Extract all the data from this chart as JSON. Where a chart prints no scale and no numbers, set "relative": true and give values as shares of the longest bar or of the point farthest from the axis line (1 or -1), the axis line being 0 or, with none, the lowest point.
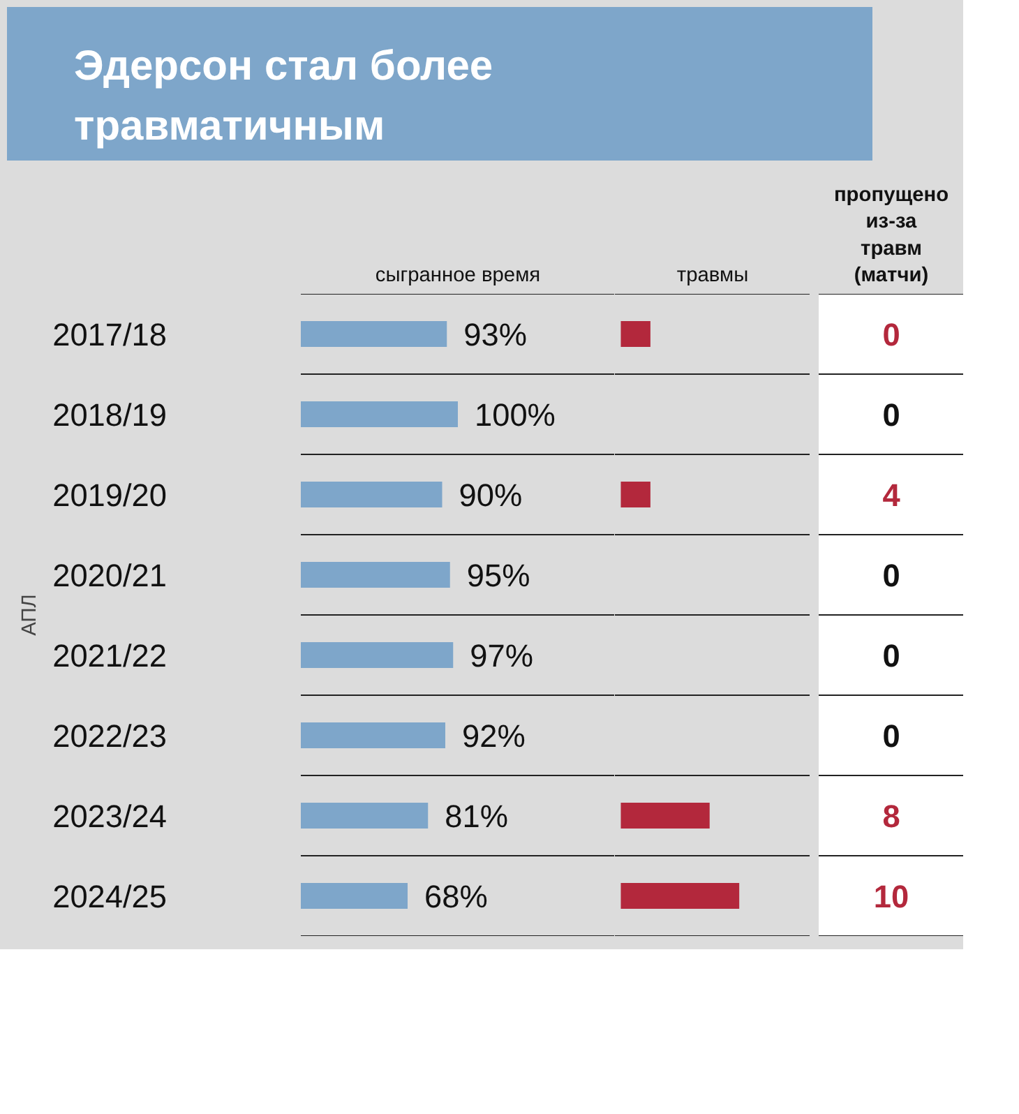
{
  "chart_data": [
    {
      "type": "bar",
      "orientation": "horizontal",
      "title": "Эдерсон стал более травматичным",
      "ylabel": "АПЛ",
      "xlabel": "сыгранное время",
      "categories": [
        "2017/18",
        "2018/19",
        "2019/20",
        "2020/21",
        "2021/22",
        "2022/23",
        "2023/24",
        "2024/25"
      ],
      "values": [
        93,
        100,
        90,
        95,
        97,
        92,
        81,
        68
      ],
      "value_labels": [
        "93%",
        "100%",
        "90%",
        "95%",
        "97%",
        "92%",
        "81%",
        "68%"
      ],
      "color": "#7ea6ca",
      "tick_labels": "y"
    },
    {
      "type": "bar",
      "orientation": "horizontal",
      "relative": true,
      "xlabel": "травмы",
      "categories": [
        "2017/18",
        "2018/19",
        "2019/20",
        "2020/21",
        "2021/22",
        "2022/23",
        "2023/24",
        "2024/25"
      ],
      "values": [
        0.25,
        0,
        0.25,
        0,
        0,
        0,
        0.75,
        1
      ],
      "color": "#b3283c",
      "tick_labels": false
    },
    {
      "type": "other",
      "xlabel": "пропущено из-за травм (матчи)",
      "values": [
        0,
        0,
        4,
        0,
        0,
        0,
        8,
        10
      ],
      "colors": [
        "#b3283c",
        "#111111",
        "#b3283c",
        "#111111",
        "#111111",
        "#111111",
        "#b3283c",
        "#b3283c"
      ],
      "data_labels": true
    }
  ]
}
